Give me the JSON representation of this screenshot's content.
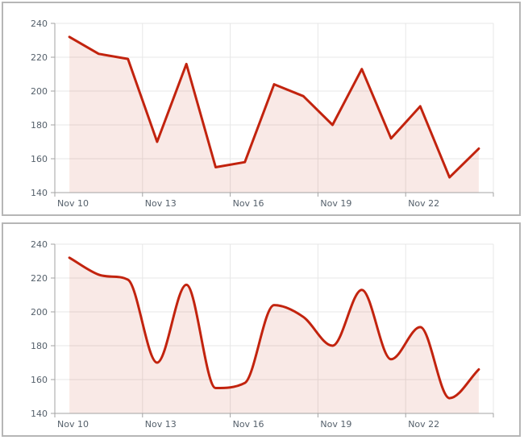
{
  "style": {
    "panel_border_color": "#b6b6b6",
    "axis_color": "#a3a3a3",
    "grid_color": "#e7e7e7",
    "label_color": "#55606b",
    "background": "#ffffff"
  },
  "panels": [
    {
      "name": "straight-line-chart"
    },
    {
      "name": "smoothed-line-chart"
    }
  ],
  "chart_data": [
    {
      "type": "line",
      "smoothing": "none",
      "title": "",
      "xlabel": "",
      "ylabel": "",
      "categories": [
        "Nov 10",
        "Nov 11",
        "Nov 12",
        "Nov 13",
        "Nov 14",
        "Nov 15",
        "Nov 16",
        "Nov 17",
        "Nov 18",
        "Nov 19",
        "Nov 20",
        "Nov 21",
        "Nov 22",
        "Nov 23",
        "Nov 24"
      ],
      "values": [
        232,
        222,
        219,
        170,
        216,
        155,
        158,
        204,
        197,
        180,
        213,
        172,
        191,
        149,
        166
      ],
      "ylim": [
        140,
        240
      ],
      "y_ticks": [
        240,
        220,
        200,
        180,
        160,
        140
      ],
      "x_tick_labels": [
        "Nov 10",
        "Nov 13",
        "Nov 16",
        "Nov 19",
        "Nov 22"
      ],
      "x_tick_indices": [
        0,
        3,
        6,
        9,
        12
      ],
      "grid": "on",
      "legend": "none",
      "line_color": "#c2230e",
      "fill_color": "#c2230e",
      "fill_opacity": 0.1
    },
    {
      "type": "spline",
      "smoothing": "monotone",
      "title": "",
      "xlabel": "",
      "ylabel": "",
      "categories": [
        "Nov 10",
        "Nov 11",
        "Nov 12",
        "Nov 13",
        "Nov 14",
        "Nov 15",
        "Nov 16",
        "Nov 17",
        "Nov 18",
        "Nov 19",
        "Nov 20",
        "Nov 21",
        "Nov 22",
        "Nov 23",
        "Nov 24"
      ],
      "values": [
        232,
        222,
        219,
        170,
        216,
        155,
        158,
        204,
        197,
        180,
        213,
        172,
        191,
        149,
        166
      ],
      "ylim": [
        140,
        240
      ],
      "y_ticks": [
        240,
        220,
        200,
        180,
        160,
        140
      ],
      "x_tick_labels": [
        "Nov 10",
        "Nov 13",
        "Nov 16",
        "Nov 19",
        "Nov 22"
      ],
      "x_tick_indices": [
        0,
        3,
        6,
        9,
        12
      ],
      "grid": "on",
      "legend": "none",
      "line_color": "#c2230e",
      "fill_color": "#c2230e",
      "fill_opacity": 0.1
    }
  ]
}
